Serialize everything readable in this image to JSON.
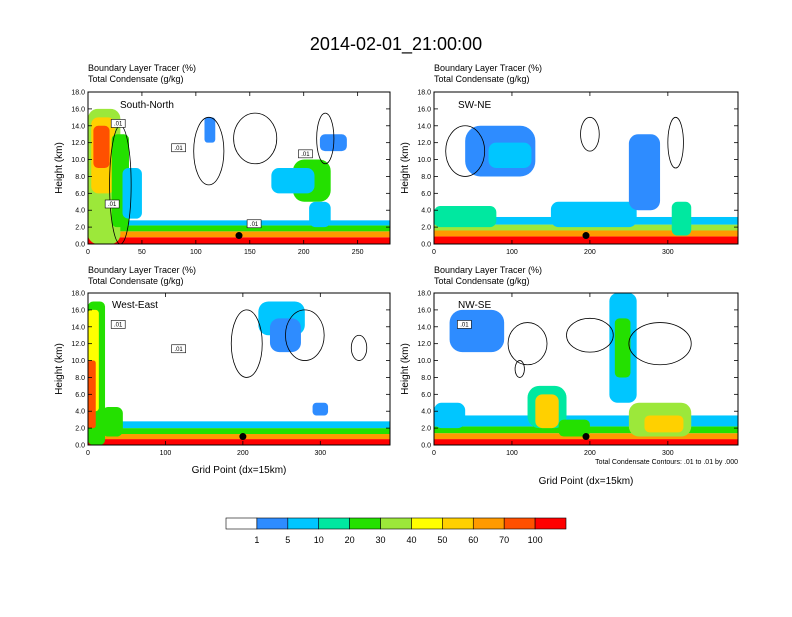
{
  "title": "2014-02-01_21:00:00",
  "colors": {
    "frame": "#000000",
    "levels": [
      "#ffffff",
      "#2e8cff",
      "#00c6ff",
      "#00e8a0",
      "#24e000",
      "#9ce83a",
      "#ffff00",
      "#ffd000",
      "#ff9a00",
      "#ff5000",
      "#ff0000"
    ]
  },
  "chart_data": [
    {
      "type": "heatmap",
      "name": "south-north",
      "cross_section": "South-North",
      "subtitle_1": "Boundary Layer Tracer    (%)",
      "subtitle_2": "Total Condensate    (g/kg)",
      "ylabel": "Height (km)",
      "xlabel": "",
      "xlim": [
        0,
        280
      ],
      "ylim": [
        0,
        18
      ],
      "x_ticks": [
        0,
        50,
        100,
        150,
        200,
        250
      ],
      "y_ticks": [
        "0.0",
        "2.0",
        "4.0",
        "6.0",
        "8.0",
        "10.0",
        "12.0",
        "14.0",
        "16.0",
        "18.0"
      ],
      "contour_labels": [
        ".01",
        ".01",
        ".01",
        ".01",
        ".01"
      ],
      "blobs": [
        {
          "x": [
            0,
            280
          ],
          "y": [
            0,
            0.8
          ],
          "level": 10
        },
        {
          "x": [
            0,
            280
          ],
          "y": [
            0.8,
            1.5
          ],
          "level": 8
        },
        {
          "x": [
            0,
            280
          ],
          "y": [
            1.5,
            2.2
          ],
          "level": 4
        },
        {
          "x": [
            0,
            280
          ],
          "y": [
            2.2,
            2.8
          ],
          "level": 2
        },
        {
          "x": [
            0,
            30
          ],
          "y": [
            0,
            16
          ],
          "level": 5
        },
        {
          "x": [
            3,
            25
          ],
          "y": [
            6,
            15
          ],
          "level": 7
        },
        {
          "x": [
            5,
            20
          ],
          "y": [
            9,
            14
          ],
          "level": 9
        },
        {
          "x": [
            22,
            38
          ],
          "y": [
            2,
            13
          ],
          "level": 4
        },
        {
          "x": [
            32,
            50
          ],
          "y": [
            3,
            9
          ],
          "level": 2
        },
        {
          "x": [
            108,
            118
          ],
          "y": [
            12,
            15
          ],
          "level": 1
        },
        {
          "x": [
            190,
            225
          ],
          "y": [
            5,
            10
          ],
          "level": 4
        },
        {
          "x": [
            170,
            210
          ],
          "y": [
            6,
            9
          ],
          "level": 2
        },
        {
          "x": [
            205,
            225
          ],
          "y": [
            2,
            5
          ],
          "level": 2
        },
        {
          "x": [
            215,
            240
          ],
          "y": [
            11,
            13
          ],
          "level": 1
        }
      ],
      "contours": [
        {
          "cx": 112,
          "cy": 11,
          "rx": 14,
          "ry": 4
        },
        {
          "cx": 155,
          "cy": 12.5,
          "rx": 20,
          "ry": 3
        },
        {
          "cx": 220,
          "cy": 12.5,
          "rx": 8,
          "ry": 3
        },
        {
          "cx": 30,
          "cy": 7,
          "rx": 10,
          "ry": 7
        }
      ],
      "markers": [
        {
          "x": 140,
          "y": 1.0
        }
      ]
    },
    {
      "type": "heatmap",
      "name": "sw-ne",
      "cross_section": "SW-NE",
      "subtitle_1": "Boundary Layer Tracer    (%)",
      "subtitle_2": "Total Condensate    (g/kg)",
      "ylabel": "Height (km)",
      "xlabel": "",
      "xlim": [
        0,
        390
      ],
      "ylim": [
        0,
        18
      ],
      "x_ticks": [
        0,
        100,
        200,
        300
      ],
      "y_ticks": [
        "0.0",
        "2.0",
        "4.0",
        "6.0",
        "8.0",
        "10.0",
        "12.0",
        "14.0",
        "16.0",
        "18.0"
      ],
      "contour_labels": [],
      "blobs": [
        {
          "x": [
            0,
            390
          ],
          "y": [
            0,
            0.9
          ],
          "level": 10
        },
        {
          "x": [
            0,
            390
          ],
          "y": [
            0.9,
            1.6
          ],
          "level": 8
        },
        {
          "x": [
            0,
            390
          ],
          "y": [
            1.6,
            2.3
          ],
          "level": 5
        },
        {
          "x": [
            0,
            390
          ],
          "y": [
            2.3,
            3.2
          ],
          "level": 2
        },
        {
          "x": [
            0,
            80
          ],
          "y": [
            2,
            4.5
          ],
          "level": 3
        },
        {
          "x": [
            40,
            130
          ],
          "y": [
            8,
            14
          ],
          "level": 1
        },
        {
          "x": [
            70,
            125
          ],
          "y": [
            9,
            12
          ],
          "level": 2
        },
        {
          "x": [
            150,
            260
          ],
          "y": [
            2,
            5
          ],
          "level": 2
        },
        {
          "x": [
            250,
            290
          ],
          "y": [
            4,
            13
          ],
          "level": 1
        },
        {
          "x": [
            305,
            330
          ],
          "y": [
            1,
            5
          ],
          "level": 3
        }
      ],
      "contours": [
        {
          "cx": 40,
          "cy": 11,
          "rx": 25,
          "ry": 3
        },
        {
          "cx": 310,
          "cy": 12,
          "rx": 10,
          "ry": 3
        },
        {
          "cx": 200,
          "cy": 13,
          "rx": 12,
          "ry": 2
        }
      ],
      "markers": [
        {
          "x": 195,
          "y": 1.0
        }
      ]
    },
    {
      "type": "heatmap",
      "name": "west-east",
      "cross_section": "West-East",
      "subtitle_1": "Boundary Layer Tracer    (%)",
      "subtitle_2": "Total Condensate    (g/kg)",
      "ylabel": "Height (km)",
      "xlabel": "Grid Point (dx=15km)",
      "xlim": [
        0,
        390
      ],
      "ylim": [
        0,
        18
      ],
      "x_ticks": [
        0,
        100,
        200,
        300
      ],
      "y_ticks": [
        "0.0",
        "2.0",
        "4.0",
        "6.0",
        "8.0",
        "10.0",
        "12.0",
        "14.0",
        "16.0",
        "18.0"
      ],
      "contour_labels": [
        ".01",
        ".01"
      ],
      "blobs": [
        {
          "x": [
            0,
            390
          ],
          "y": [
            0,
            0.7
          ],
          "level": 10
        },
        {
          "x": [
            0,
            390
          ],
          "y": [
            0.7,
            1.3
          ],
          "level": 8
        },
        {
          "x": [
            0,
            390
          ],
          "y": [
            1.3,
            2.0
          ],
          "level": 4
        },
        {
          "x": [
            0,
            390
          ],
          "y": [
            2.0,
            2.8
          ],
          "level": 2
        },
        {
          "x": [
            0,
            22
          ],
          "y": [
            0,
            17
          ],
          "level": 4
        },
        {
          "x": [
            0,
            14
          ],
          "y": [
            4,
            16
          ],
          "level": 6
        },
        {
          "x": [
            0,
            10
          ],
          "y": [
            2,
            10
          ],
          "level": 9
        },
        {
          "x": [
            18,
            45
          ],
          "y": [
            1,
            4.5
          ],
          "level": 4
        },
        {
          "x": [
            220,
            280
          ],
          "y": [
            13,
            17
          ],
          "level": 2
        },
        {
          "x": [
            235,
            275
          ],
          "y": [
            11,
            15
          ],
          "level": 1
        },
        {
          "x": [
            290,
            310
          ],
          "y": [
            3.5,
            5
          ],
          "level": 1
        }
      ],
      "contours": [
        {
          "cx": 205,
          "cy": 12,
          "rx": 20,
          "ry": 4
        },
        {
          "cx": 280,
          "cy": 13,
          "rx": 25,
          "ry": 3
        },
        {
          "cx": 350,
          "cy": 11.5,
          "rx": 10,
          "ry": 1.5
        }
      ],
      "markers": [
        {
          "x": 200,
          "y": 1.0
        }
      ]
    },
    {
      "type": "heatmap",
      "name": "nw-se",
      "cross_section": "NW-SE",
      "subtitle_1": "Boundary Layer Tracer    (%)",
      "subtitle_2": "Total Condensate    (g/kg)",
      "ylabel": "Height (km)",
      "xlabel": "Grid Point (dx=15km)",
      "xlim": [
        0,
        390
      ],
      "ylim": [
        0,
        18
      ],
      "x_ticks": [
        0,
        100,
        200,
        300
      ],
      "y_ticks": [
        "0.0",
        "2.0",
        "4.0",
        "6.0",
        "8.0",
        "10.0",
        "12.0",
        "14.0",
        "16.0",
        "18.0"
      ],
      "contour_labels": [
        ".01"
      ],
      "footnote": "Total Condensate Contours: .01 to .01 by .000",
      "blobs": [
        {
          "x": [
            0,
            390
          ],
          "y": [
            0,
            0.7
          ],
          "level": 10
        },
        {
          "x": [
            0,
            390
          ],
          "y": [
            0.7,
            1.4
          ],
          "level": 8
        },
        {
          "x": [
            0,
            390
          ],
          "y": [
            1.4,
            2.2
          ],
          "level": 4
        },
        {
          "x": [
            0,
            390
          ],
          "y": [
            2.2,
            3.5
          ],
          "level": 2
        },
        {
          "x": [
            20,
            90
          ],
          "y": [
            11,
            16
          ],
          "level": 1
        },
        {
          "x": [
            120,
            170
          ],
          "y": [
            2,
            7
          ],
          "level": 3
        },
        {
          "x": [
            130,
            160
          ],
          "y": [
            2,
            6
          ],
          "level": 7
        },
        {
          "x": [
            160,
            200
          ],
          "y": [
            1,
            3
          ],
          "level": 4
        },
        {
          "x": [
            225,
            260
          ],
          "y": [
            5,
            18
          ],
          "level": 2
        },
        {
          "x": [
            232,
            252
          ],
          "y": [
            8,
            15
          ],
          "level": 4
        },
        {
          "x": [
            250,
            330
          ],
          "y": [
            1,
            5
          ],
          "level": 5
        },
        {
          "x": [
            270,
            320
          ],
          "y": [
            1.5,
            3.5
          ],
          "level": 7
        },
        {
          "x": [
            0,
            40
          ],
          "y": [
            2,
            5
          ],
          "level": 2
        }
      ],
      "contours": [
        {
          "cx": 200,
          "cy": 13,
          "rx": 30,
          "ry": 2
        },
        {
          "cx": 290,
          "cy": 12,
          "rx": 40,
          "ry": 2.5
        },
        {
          "cx": 120,
          "cy": 12,
          "rx": 25,
          "ry": 2.5
        },
        {
          "cx": 110,
          "cy": 9,
          "rx": 6,
          "ry": 1
        }
      ],
      "markers": [
        {
          "x": 195,
          "y": 1.0
        }
      ]
    }
  ],
  "colorbar": {
    "labels": [
      "1",
      "5",
      "10",
      "20",
      "30",
      "40",
      "50",
      "60",
      "70",
      "100"
    ]
  }
}
